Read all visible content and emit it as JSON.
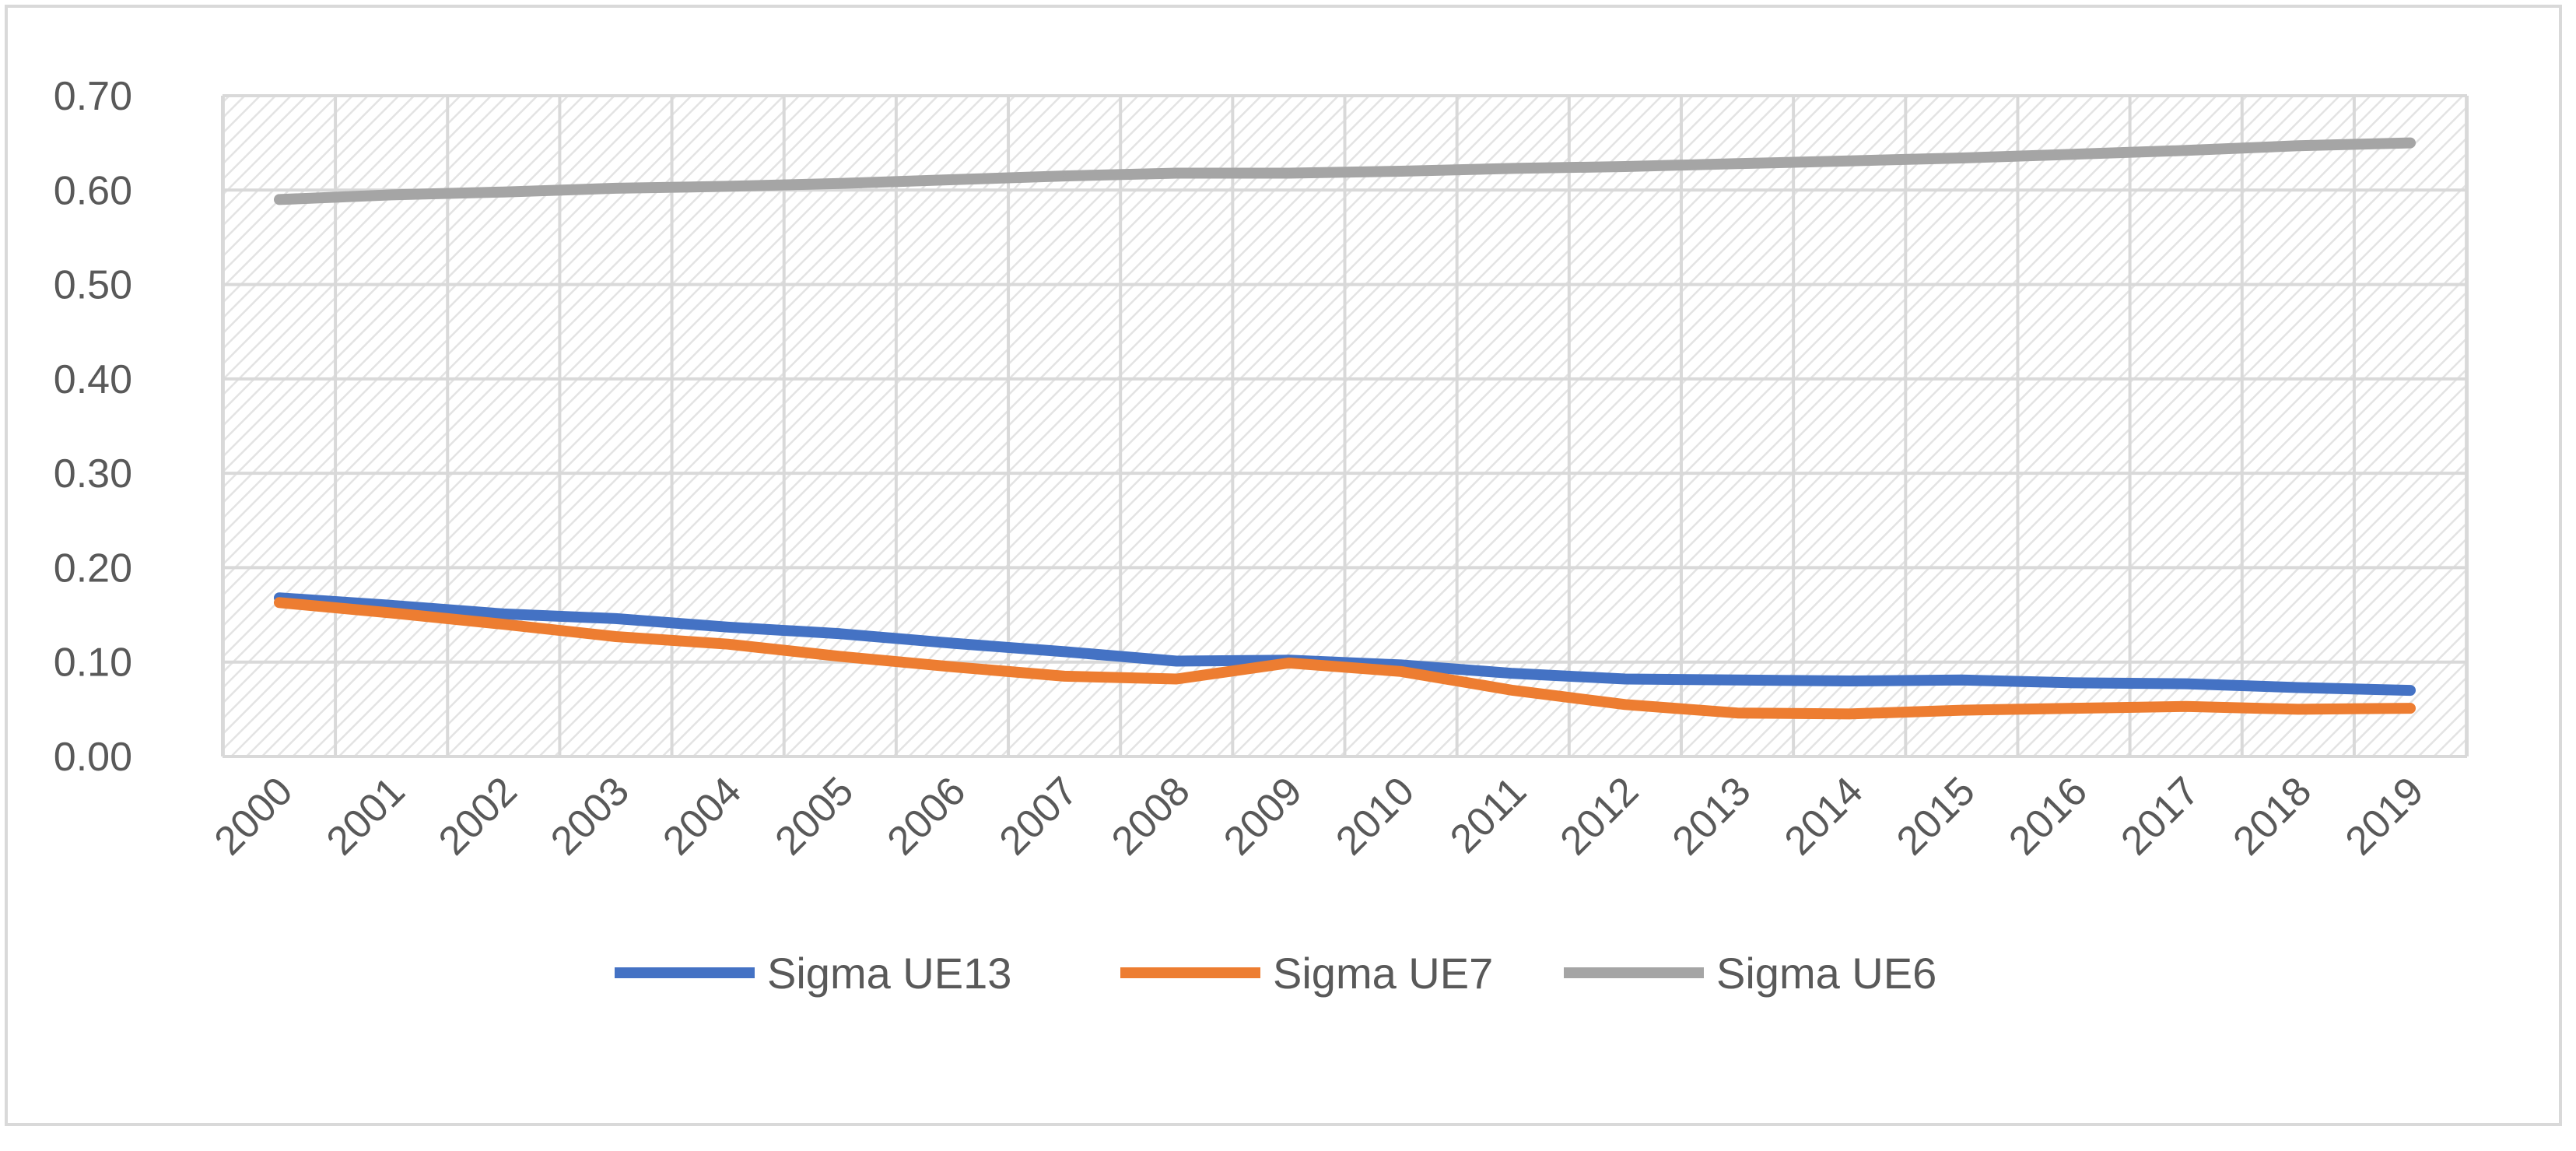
{
  "chart_data": {
    "type": "line",
    "title": "",
    "xlabel": "",
    "ylabel": "",
    "categories": [
      "2000",
      "2001",
      "2002",
      "2003",
      "2004",
      "2005",
      "2006",
      "2007",
      "2008",
      "2009",
      "2010",
      "2011",
      "2012",
      "2013",
      "2014",
      "2015",
      "2016",
      "2017",
      "2018",
      "2019"
    ],
    "ylim": [
      0,
      0.7
    ],
    "y_ticks": [
      "0.00",
      "0.10",
      "0.20",
      "0.30",
      "0.40",
      "0.50",
      "0.60",
      "0.70"
    ],
    "grid": true,
    "legend_position": "bottom",
    "series": [
      {
        "name": "Sigma UE13",
        "color": "#4472c4",
        "values": [
          0.168,
          0.16,
          0.151,
          0.146,
          0.137,
          0.13,
          0.12,
          0.111,
          0.101,
          0.102,
          0.097,
          0.088,
          0.082,
          0.081,
          0.08,
          0.081,
          0.078,
          0.077,
          0.073,
          0.07
        ]
      },
      {
        "name": "Sigma UE7",
        "color": "#ed7d31",
        "values": [
          0.163,
          0.152,
          0.14,
          0.127,
          0.119,
          0.106,
          0.095,
          0.085,
          0.082,
          0.099,
          0.09,
          0.07,
          0.055,
          0.046,
          0.045,
          0.049,
          0.051,
          0.053,
          0.05,
          0.051
        ]
      },
      {
        "name": "Sigma UE6",
        "color": "#a5a5a5",
        "values": [
          0.59,
          0.595,
          0.598,
          0.602,
          0.604,
          0.607,
          0.611,
          0.615,
          0.618,
          0.618,
          0.62,
          0.623,
          0.625,
          0.628,
          0.631,
          0.634,
          0.638,
          0.642,
          0.647,
          0.65
        ]
      }
    ]
  }
}
